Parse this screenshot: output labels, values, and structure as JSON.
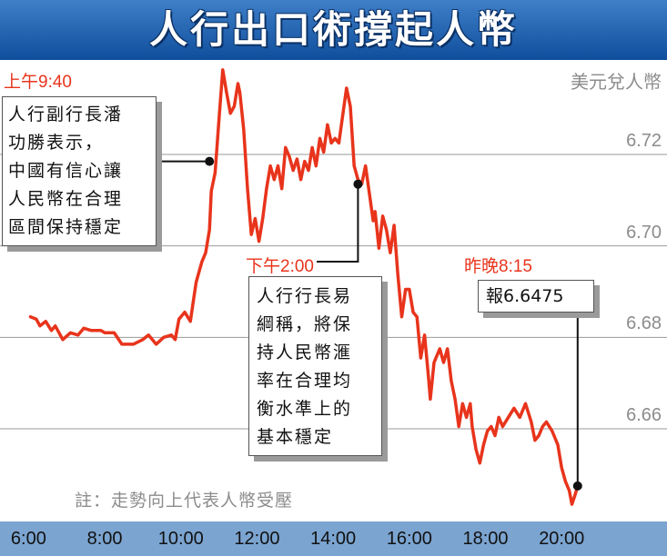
{
  "chart_data": {
    "type": "line",
    "title": "人行出口術撐起人幣",
    "ylabel": "美元兌人幣",
    "ylim": [
      6.6435,
      6.7428
    ],
    "xlim": [
      5.25,
      21.5
    ],
    "xticks": [
      "6:00",
      "8:00",
      "10:00",
      "12:00",
      "14:00",
      "16:00",
      "18:00",
      "20:00"
    ],
    "yticks": [
      "6.72",
      "6.70",
      "6.68",
      "6.66"
    ],
    "grid": "horizontal",
    "line_color": "#e8341c",
    "series": [
      {
        "points": [
          [
            6.05,
            6.6845
          ],
          [
            6.2,
            6.684
          ],
          [
            6.3,
            6.6825
          ],
          [
            6.45,
            6.6835
          ],
          [
            6.6,
            6.6815
          ],
          [
            6.7,
            6.6825
          ],
          [
            6.9,
            6.6795
          ],
          [
            7.1,
            6.681
          ],
          [
            7.3,
            6.6805
          ],
          [
            7.45,
            6.682
          ],
          [
            7.65,
            6.6815
          ],
          [
            7.9,
            6.6815
          ],
          [
            8.0,
            6.681
          ],
          [
            8.25,
            6.681
          ],
          [
            8.45,
            6.6785
          ],
          [
            8.75,
            6.6785
          ],
          [
            9.0,
            6.6795
          ],
          [
            9.15,
            6.6805
          ],
          [
            9.35,
            6.6785
          ],
          [
            9.55,
            6.68
          ],
          [
            9.75,
            6.6805
          ],
          [
            9.85,
            6.6795
          ],
          [
            9.95,
            6.684
          ],
          [
            10.1,
            6.6855
          ],
          [
            10.25,
            6.6835
          ],
          [
            10.4,
            6.692
          ],
          [
            10.55,
            6.6965
          ],
          [
            10.65,
            6.6985
          ],
          [
            10.75,
            6.7035
          ],
          [
            10.8,
            6.712
          ],
          [
            10.9,
            6.716
          ],
          [
            11.0,
            6.7275
          ],
          [
            11.1,
            6.7385
          ],
          [
            11.2,
            6.7335
          ],
          [
            11.3,
            6.729
          ],
          [
            11.4,
            6.7305
          ],
          [
            11.5,
            6.7355
          ],
          [
            11.55,
            6.7335
          ],
          [
            11.65,
            6.7255
          ],
          [
            11.75,
            6.7125
          ],
          [
            11.85,
            6.7025
          ],
          [
            11.95,
            6.706
          ],
          [
            12.05,
            6.701
          ],
          [
            12.15,
            6.706
          ],
          [
            12.25,
            6.7125
          ],
          [
            12.35,
            6.7175
          ],
          [
            12.45,
            6.7145
          ],
          [
            12.55,
            6.7175
          ],
          [
            12.65,
            6.7125
          ],
          [
            12.75,
            6.7215
          ],
          [
            12.85,
            6.7195
          ],
          [
            12.95,
            6.7165
          ],
          [
            13.05,
            6.719
          ],
          [
            13.15,
            6.7145
          ],
          [
            13.25,
            6.7185
          ],
          [
            13.35,
            6.7165
          ],
          [
            13.45,
            6.7215
          ],
          [
            13.55,
            6.7175
          ],
          [
            13.65,
            6.7235
          ],
          [
            13.75,
            6.7205
          ],
          [
            13.85,
            6.7265
          ],
          [
            13.95,
            6.7225
          ],
          [
            14.05,
            6.7235
          ],
          [
            14.15,
            6.7225
          ],
          [
            14.25,
            6.7285
          ],
          [
            14.35,
            6.7345
          ],
          [
            14.45,
            6.7305
          ],
          [
            14.55,
            6.7175
          ],
          [
            14.65,
            6.7145
          ],
          [
            14.75,
            6.7135
          ],
          [
            14.85,
            6.7175
          ],
          [
            14.95,
            6.7115
          ],
          [
            15.05,
            6.7055
          ],
          [
            15.1,
            6.7075
          ],
          [
            15.2,
            6.6995
          ],
          [
            15.3,
            6.7065
          ],
          [
            15.4,
            6.7035
          ],
          [
            15.5,
            6.6985
          ],
          [
            15.6,
            6.7045
          ],
          [
            15.7,
            6.6935
          ],
          [
            15.8,
            6.6845
          ],
          [
            15.9,
            6.6905
          ],
          [
            16.0,
            6.6905
          ],
          [
            16.1,
            6.6855
          ],
          [
            16.2,
            6.6845
          ],
          [
            16.3,
            6.6755
          ],
          [
            16.4,
            6.6805
          ],
          [
            16.5,
            6.6715
          ],
          [
            16.55,
            6.6665
          ],
          [
            16.65,
            6.6745
          ],
          [
            16.8,
            6.6775
          ],
          [
            16.9,
            6.6745
          ],
          [
            17.0,
            6.6775
          ],
          [
            17.1,
            6.6705
          ],
          [
            17.2,
            6.6665
          ],
          [
            17.3,
            6.6605
          ],
          [
            17.4,
            6.6655
          ],
          [
            17.5,
            6.6625
          ],
          [
            17.6,
            6.6655
          ],
          [
            17.65,
            6.6605
          ],
          [
            17.75,
            6.6555
          ],
          [
            17.85,
            6.6525
          ],
          [
            17.95,
            6.6565
          ],
          [
            18.05,
            6.6595
          ],
          [
            18.15,
            6.6605
          ],
          [
            18.25,
            6.6585
          ],
          [
            18.35,
            6.6625
          ],
          [
            18.45,
            6.6605
          ],
          [
            18.6,
            6.6625
          ],
          [
            18.75,
            6.6645
          ],
          [
            18.9,
            6.6625
          ],
          [
            19.05,
            6.6655
          ],
          [
            19.2,
            6.6615
          ],
          [
            19.3,
            6.6575
          ],
          [
            19.4,
            6.6585
          ],
          [
            19.5,
            6.6605
          ],
          [
            19.6,
            6.6615
          ],
          [
            19.75,
            6.6595
          ],
          [
            19.9,
            6.6565
          ],
          [
            20.0,
            6.6515
          ],
          [
            20.1,
            6.6485
          ],
          [
            20.2,
            6.6465
          ],
          [
            20.27,
            6.6435
          ],
          [
            20.35,
            6.6455
          ],
          [
            20.42,
            6.6475
          ]
        ]
      }
    ],
    "markers": [
      {
        "x": 10.75,
        "y": 6.7185
      },
      {
        "x": 14.65,
        "y": 6.7135
      },
      {
        "x": 20.42,
        "y": 6.6475
      }
    ],
    "annotations": [
      {
        "time_label": "上午9:40",
        "lines": [
          "人行副行長潘",
          "功勝表示，",
          "中國有信心讓",
          "人民幣在合理",
          "區間保持穩定"
        ]
      },
      {
        "time_label": "下午2:00",
        "lines": [
          "人行行長易",
          "綱稱，將保",
          "持人民幣滙",
          "率在合理均",
          "衡水準上的",
          "基本穩定"
        ]
      },
      {
        "time_label": "昨晚8:15",
        "lines": [
          "報6.6475"
        ]
      }
    ],
    "note": "註：走勢向上代表人幣受壓"
  }
}
